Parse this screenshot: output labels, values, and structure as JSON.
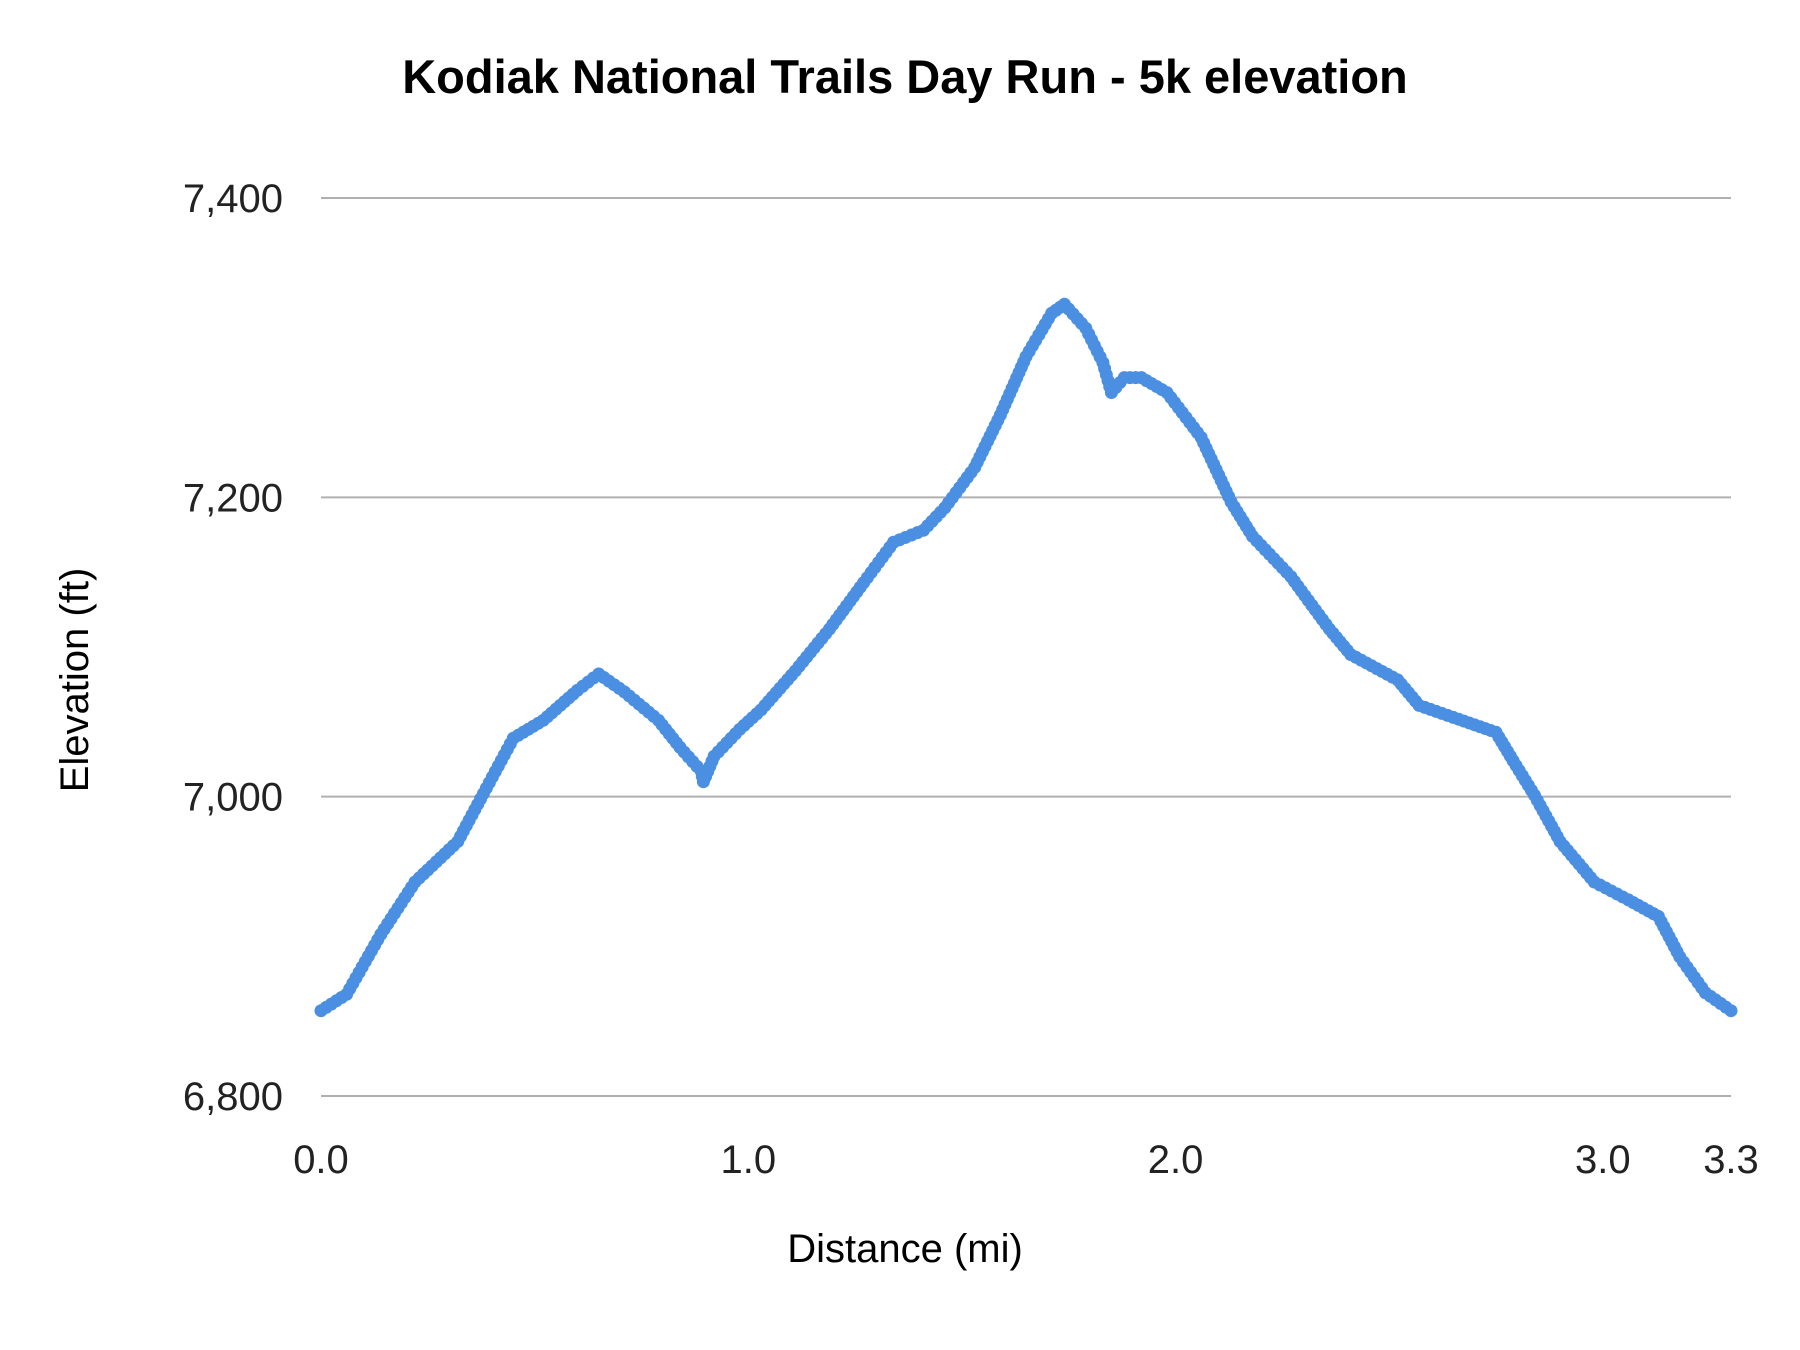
{
  "chart_data": {
    "type": "scatter",
    "title": "Kodiak National Trails Day Run - 5k elevation",
    "xlabel": "Distance (mi)",
    "ylabel": "Elevation (ft)",
    "xlim": [
      0,
      3.3
    ],
    "ylim": [
      6800,
      7400
    ],
    "x_ticks": [
      0.0,
      1.0,
      2.0,
      3.0,
      3.3
    ],
    "x_tick_labels": [
      "0.0",
      "1.0",
      "2.0",
      "3.0",
      "3.3"
    ],
    "y_ticks": [
      6800,
      7000,
      7200,
      7400
    ],
    "y_tick_labels": [
      "6,800",
      "7,000",
      "7,200",
      "7,400"
    ],
    "grid": "horizontal",
    "legend": "none",
    "color": "#4a8fe2",
    "gridline_color": "#b0b0b0",
    "points": [
      [
        0.0,
        6857
      ],
      [
        0.06,
        6868
      ],
      [
        0.14,
        6908
      ],
      [
        0.22,
        6943
      ],
      [
        0.32,
        6970
      ],
      [
        0.38,
        7002
      ],
      [
        0.45,
        7039
      ],
      [
        0.52,
        7051
      ],
      [
        0.6,
        7071
      ],
      [
        0.65,
        7082
      ],
      [
        0.71,
        7070
      ],
      [
        0.79,
        7051
      ],
      [
        0.84,
        7033
      ],
      [
        0.89,
        7017
      ],
      [
        0.895,
        7010
      ],
      [
        0.92,
        7027
      ],
      [
        0.98,
        7045
      ],
      [
        1.03,
        7058
      ],
      [
        1.11,
        7084
      ],
      [
        1.19,
        7112
      ],
      [
        1.27,
        7143
      ],
      [
        1.34,
        7170
      ],
      [
        1.41,
        7178
      ],
      [
        1.46,
        7193
      ],
      [
        1.53,
        7220
      ],
      [
        1.59,
        7255
      ],
      [
        1.65,
        7294
      ],
      [
        1.71,
        7323
      ],
      [
        1.74,
        7329
      ],
      [
        1.79,
        7313
      ],
      [
        1.83,
        7290
      ],
      [
        1.85,
        7270
      ],
      [
        1.88,
        7280
      ],
      [
        1.92,
        7280
      ],
      [
        1.98,
        7270
      ],
      [
        2.06,
        7240
      ],
      [
        2.13,
        7197
      ],
      [
        2.18,
        7174
      ],
      [
        2.27,
        7147
      ],
      [
        2.36,
        7112
      ],
      [
        2.41,
        7095
      ],
      [
        2.52,
        7078
      ],
      [
        2.57,
        7061
      ],
      [
        2.65,
        7053
      ],
      [
        2.75,
        7043
      ],
      [
        2.79,
        7024
      ],
      [
        2.84,
        7001
      ],
      [
        2.9,
        6970
      ],
      [
        2.98,
        6943
      ],
      [
        3.06,
        6931
      ],
      [
        3.13,
        6920
      ],
      [
        3.18,
        6893
      ],
      [
        3.24,
        6869
      ],
      [
        3.3,
        6857
      ]
    ]
  }
}
